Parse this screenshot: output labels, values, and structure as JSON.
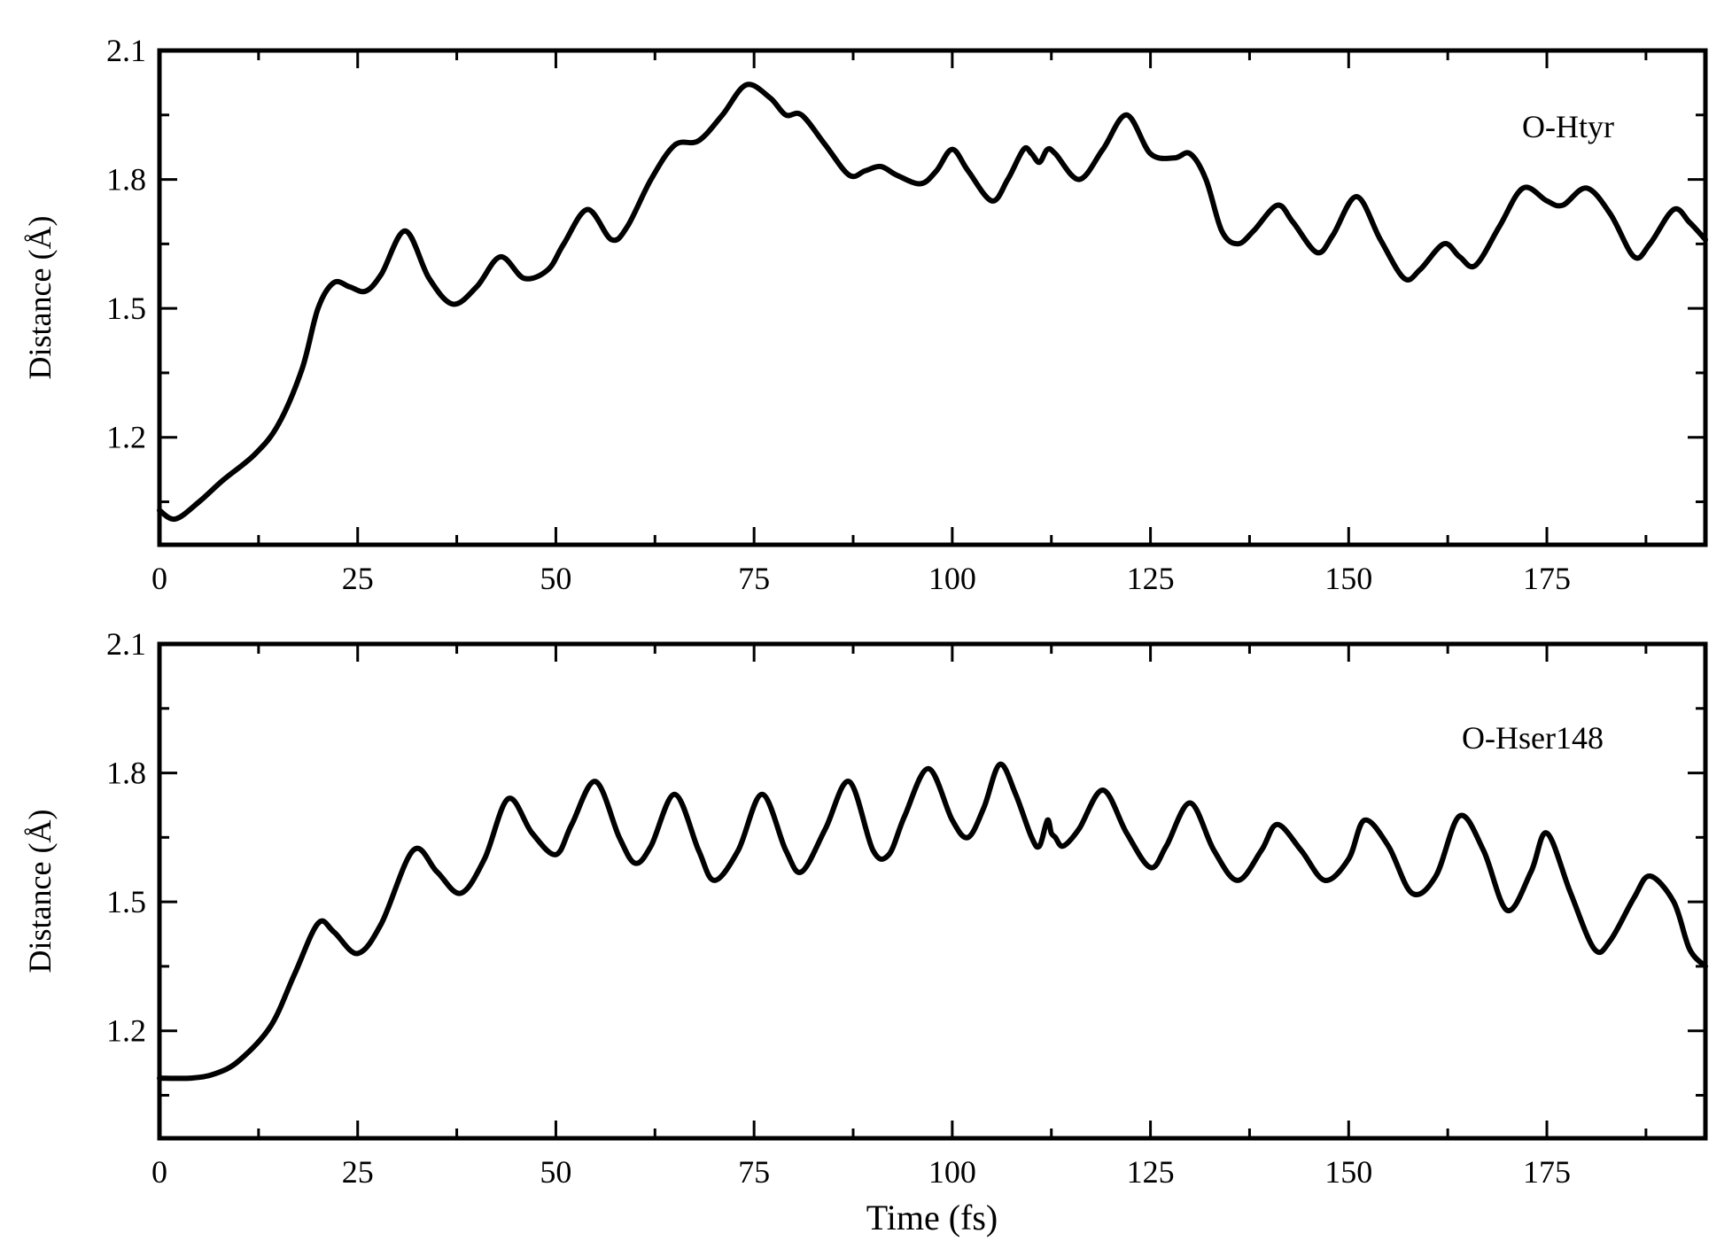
{
  "chart_data": [
    {
      "type": "line",
      "annotation": "O-Htyr",
      "xlabel": "",
      "ylabel": "Distance (Å)",
      "xlim": [
        0,
        195
      ],
      "ylim": [
        0.95,
        2.1
      ],
      "x_ticks": [
        0,
        25,
        50,
        75,
        100,
        125,
        150,
        175
      ],
      "y_ticks": [
        1.2,
        1.5,
        1.8,
        2.1
      ],
      "x_tick_labels": [
        "0",
        "25",
        "50",
        "75",
        "100",
        "125",
        "150",
        "175"
      ],
      "y_tick_labels": [
        "1.2",
        "1.5",
        "1.8",
        "2.1"
      ],
      "series": [
        {
          "x": [
            0,
            2,
            5,
            8,
            12,
            15,
            18,
            20,
            22,
            24,
            26,
            28,
            31,
            34,
            37,
            40,
            43,
            46,
            49,
            51,
            54,
            57,
            59,
            62,
            65,
            68,
            71,
            74,
            77,
            79,
            81,
            84,
            87,
            89,
            91,
            93,
            96,
            98,
            100,
            102,
            105,
            107,
            109,
            110,
            111,
            112,
            113,
            116,
            119,
            122,
            125,
            128,
            130,
            132,
            134,
            136,
            138,
            141,
            143,
            146,
            148,
            151,
            154,
            157,
            159,
            162,
            164,
            166,
            169,
            172,
            175,
            177,
            180,
            183,
            186,
            188,
            191,
            193,
            195
          ],
          "y": [
            1.03,
            1.01,
            1.05,
            1.1,
            1.16,
            1.23,
            1.36,
            1.5,
            1.56,
            1.55,
            1.54,
            1.58,
            1.68,
            1.57,
            1.51,
            1.55,
            1.62,
            1.57,
            1.59,
            1.65,
            1.73,
            1.66,
            1.69,
            1.8,
            1.88,
            1.89,
            1.95,
            2.02,
            1.99,
            1.95,
            1.95,
            1.88,
            1.81,
            1.82,
            1.83,
            1.81,
            1.79,
            1.82,
            1.87,
            1.82,
            1.75,
            1.8,
            1.87,
            1.86,
            1.84,
            1.87,
            1.86,
            1.8,
            1.87,
            1.95,
            1.86,
            1.85,
            1.86,
            1.8,
            1.68,
            1.65,
            1.68,
            1.74,
            1.7,
            1.63,
            1.67,
            1.76,
            1.66,
            1.57,
            1.59,
            1.65,
            1.62,
            1.6,
            1.69,
            1.78,
            1.75,
            1.74,
            1.78,
            1.72,
            1.62,
            1.65,
            1.73,
            1.7,
            1.66
          ]
        }
      ]
    },
    {
      "type": "line",
      "annotation": "O-Hser148",
      "xlabel": "Time (fs)",
      "ylabel": "Distance (Å)",
      "xlim": [
        0,
        195
      ],
      "ylim": [
        0.95,
        2.1
      ],
      "x_ticks": [
        0,
        25,
        50,
        75,
        100,
        125,
        150,
        175
      ],
      "y_ticks": [
        1.2,
        1.5,
        1.8,
        2.1
      ],
      "x_tick_labels": [
        "0",
        "25",
        "50",
        "75",
        "100",
        "125",
        "150",
        "175"
      ],
      "y_tick_labels": [
        "1.2",
        "1.5",
        "1.8",
        "2.1"
      ],
      "series": [
        {
          "x": [
            0,
            4,
            7,
            10,
            14,
            17,
            20,
            22,
            25,
            28,
            32,
            35,
            38,
            41,
            44,
            47,
            50,
            52,
            55,
            58,
            60,
            62,
            65,
            68,
            70,
            73,
            76,
            79,
            81,
            84,
            87,
            90,
            92,
            94,
            97,
            100,
            102,
            104,
            106,
            108,
            110,
            111,
            112,
            112.5,
            113,
            114,
            116,
            119,
            122,
            125,
            127,
            130,
            133,
            136,
            139,
            141,
            144,
            147,
            150,
            152,
            155,
            158,
            161,
            164,
            167,
            170,
            173,
            175,
            178,
            181,
            183,
            186,
            188,
            191,
            193,
            195
          ],
          "y": [
            1.09,
            1.09,
            1.1,
            1.13,
            1.21,
            1.33,
            1.45,
            1.43,
            1.38,
            1.45,
            1.62,
            1.57,
            1.52,
            1.6,
            1.74,
            1.66,
            1.61,
            1.68,
            1.78,
            1.65,
            1.59,
            1.63,
            1.75,
            1.62,
            1.55,
            1.62,
            1.75,
            1.62,
            1.57,
            1.67,
            1.78,
            1.62,
            1.61,
            1.7,
            1.81,
            1.69,
            1.65,
            1.72,
            1.82,
            1.75,
            1.65,
            1.63,
            1.69,
            1.66,
            1.65,
            1.63,
            1.67,
            1.76,
            1.66,
            1.58,
            1.63,
            1.73,
            1.62,
            1.55,
            1.62,
            1.68,
            1.62,
            1.55,
            1.6,
            1.69,
            1.63,
            1.52,
            1.56,
            1.7,
            1.62,
            1.48,
            1.57,
            1.66,
            1.52,
            1.39,
            1.41,
            1.51,
            1.56,
            1.5,
            1.39,
            1.35
          ]
        }
      ]
    }
  ]
}
